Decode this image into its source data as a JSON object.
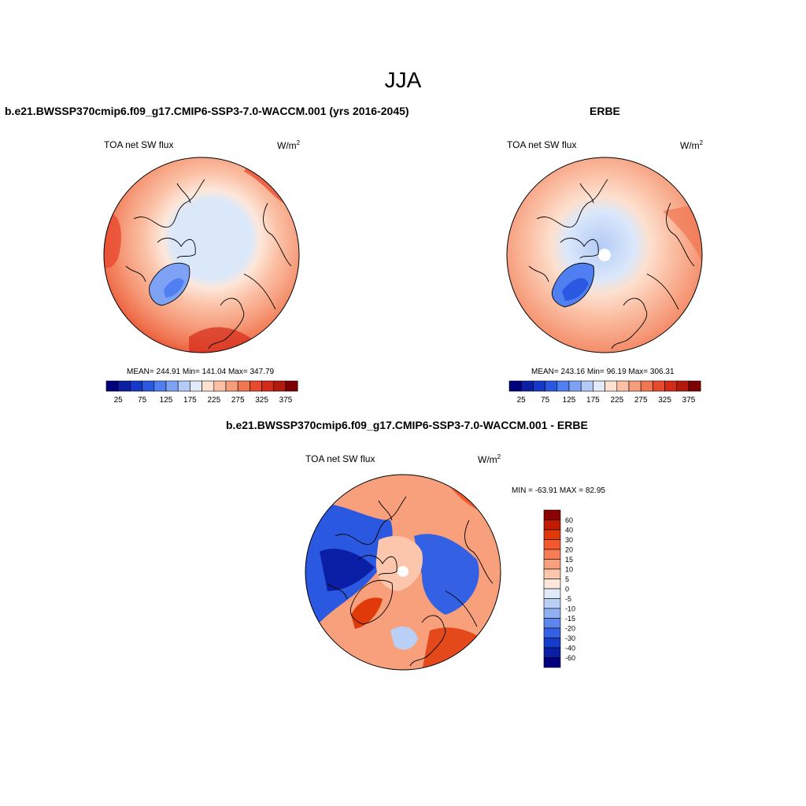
{
  "figure": {
    "title": "JJA"
  },
  "panels": {
    "model": {
      "title": "b.e21.BWSSP370cmip6.f09_g17.CMIP6-SSP3-7.0-WACCM.001 (yrs 2016-2045)",
      "left_label": "TOA net SW flux",
      "units": "W/m",
      "units_sup": "2",
      "stats": "MEAN= 244.91  Min= 141.04  Max= 347.79"
    },
    "obs": {
      "title": "ERBE",
      "left_label": "TOA net SW flux",
      "units": "W/m",
      "units_sup": "2",
      "stats": "MEAN= 243.16  Min=  96.19  Max= 306.31"
    },
    "diff": {
      "title": "b.e21.BWSSP370cmip6.f09_g17.CMIP6-SSP3-7.0-WACCM.001 - ERBE",
      "left_label": "TOA net SW flux",
      "units": "W/m",
      "units_sup": "2",
      "stats": "MIN = -63.91 MAX =  82.95"
    }
  },
  "colorbars": {
    "abs_labels": [
      "25",
      "75",
      "125",
      "175",
      "225",
      "275",
      "325",
      "375"
    ],
    "abs_colors": [
      "#00007f",
      "#0a1fa6",
      "#1638c8",
      "#2b58e0",
      "#4f7ff0",
      "#7ea3f5",
      "#b4cbf7",
      "#e2ebfa",
      "#fde0cf",
      "#fbc0a5",
      "#f69d7c",
      "#f07551",
      "#e84a2e",
      "#d42a18",
      "#b21a0d",
      "#7f0000"
    ],
    "diff_labels": [
      "60",
      "40",
      "30",
      "20",
      "15",
      "10",
      "5",
      "0",
      "-5",
      "-10",
      "-15",
      "-20",
      "-30",
      "-40",
      "-60"
    ],
    "diff_colors": [
      "#8b0000",
      "#c21a00",
      "#e03a0a",
      "#f2592c",
      "#f67e55",
      "#f8a07c",
      "#fbc6ac",
      "#fde7da",
      "#e0eaf8",
      "#b9cff5",
      "#8fb1f2",
      "#5f86ec",
      "#3461e4",
      "#143dcc",
      "#0a1fa6",
      "#00007f"
    ]
  }
}
